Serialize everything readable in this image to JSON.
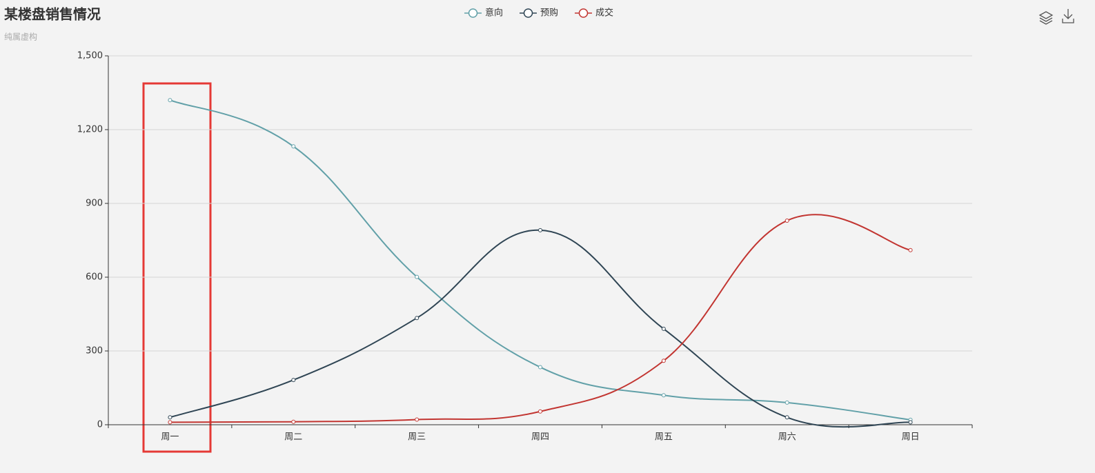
{
  "chart_data": {
    "type": "line",
    "title": "某楼盘销售情况",
    "subtitle": "纯属虚构",
    "categories": [
      "周一",
      "周二",
      "周三",
      "周四",
      "周五",
      "周六",
      "周日"
    ],
    "series": [
      {
        "name": "意向",
        "color": "#61a0a8",
        "values": [
          1320,
          1132,
          601,
          234,
          120,
          90,
          20
        ]
      },
      {
        "name": "预购",
        "color": "#2f4554",
        "values": [
          30,
          182,
          434,
          791,
          390,
          30,
          10
        ]
      },
      {
        "name": "成交",
        "color": "#c23531",
        "values": [
          10,
          12,
          21,
          54,
          260,
          830,
          710
        ]
      }
    ],
    "ylim": [
      0,
      1500
    ],
    "yticks": [
      0,
      300,
      600,
      900,
      {
        "value": 1200,
        "label": "1,200"
      },
      {
        "value": 1500,
        "label": "1,500"
      }
    ],
    "grid": true,
    "smooth": true,
    "legend": "top"
  }
}
